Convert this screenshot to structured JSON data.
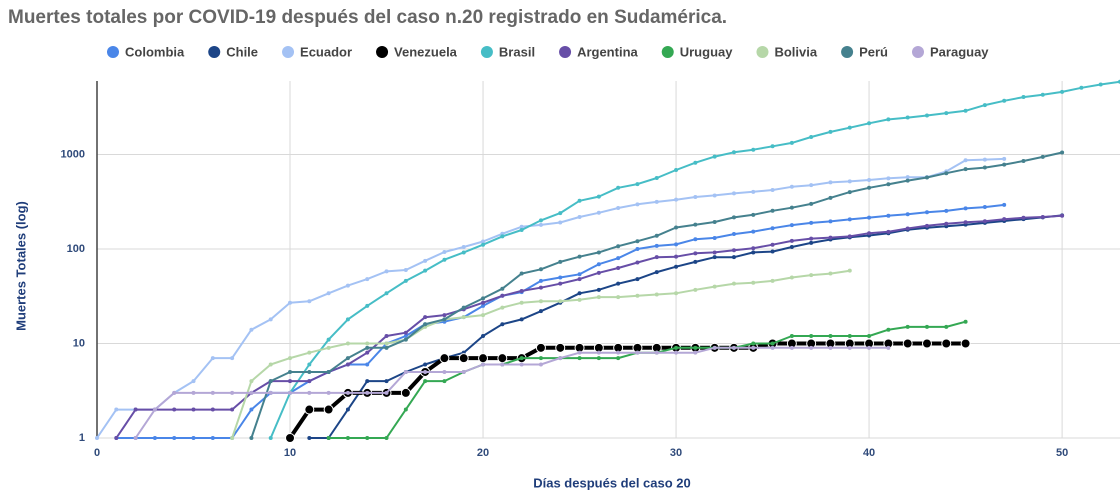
{
  "chart_data": {
    "type": "line",
    "title": "Muertes totales por COVID-19 después del caso n.20 registrado en Sudamérica.",
    "x_label": "Días después del caso 20",
    "y_label": "Muertes Totales (log)",
    "log_y": true,
    "grid": true,
    "legend": "top",
    "xlim": [
      0,
      53
    ],
    "xticks": [
      0,
      10,
      20,
      30,
      40,
      50
    ],
    "ylim": [
      1,
      6000
    ],
    "yticks": [
      1,
      10,
      100,
      1000
    ],
    "x": [
      0,
      1,
      2,
      3,
      4,
      5,
      6,
      7,
      8,
      9,
      10,
      11,
      12,
      13,
      14,
      15,
      16,
      17,
      18,
      19,
      20,
      21,
      22,
      23,
      24,
      25,
      26,
      27,
      28,
      29,
      30,
      31,
      32,
      33,
      34,
      35,
      36,
      37,
      38,
      39,
      40,
      41,
      42,
      43,
      44,
      45,
      46,
      47,
      48,
      49,
      50,
      51,
      52,
      53
    ],
    "series": [
      {
        "name": "Colombia",
        "color": "#4a86e8",
        "values": [
          null,
          1,
          1,
          1,
          1,
          1,
          1,
          1,
          2,
          3,
          3,
          4,
          5,
          6,
          6,
          10,
          12,
          16,
          17,
          19,
          25,
          32,
          35,
          46,
          50,
          54,
          69,
          80,
          100,
          108,
          112,
          127,
          131,
          144,
          153,
          166,
          179,
          189,
          196,
          206,
          215,
          225,
          233,
          245,
          253,
          269,
          278,
          293,
          null,
          null,
          null,
          null,
          null,
          null
        ]
      },
      {
        "name": "Chile",
        "color": "#1c4587",
        "values": [
          null,
          null,
          null,
          null,
          null,
          null,
          null,
          null,
          null,
          null,
          null,
          1,
          1,
          2,
          4,
          4,
          5,
          6,
          7,
          8,
          12,
          16,
          18,
          22,
          27,
          34,
          37,
          43,
          48,
          57,
          65,
          73,
          82,
          82,
          92,
          94,
          105,
          116,
          126,
          133,
          139,
          147,
          160,
          168,
          174,
          181,
          189,
          198,
          207,
          216,
          227,
          null,
          null,
          null
        ]
      },
      {
        "name": "Ecuador",
        "color": "#a4c2f4",
        "values": [
          1,
          2,
          2,
          2,
          3,
          4,
          7,
          7,
          14,
          18,
          27,
          28,
          34,
          41,
          48,
          58,
          60,
          75,
          93,
          105,
          120,
          145,
          172,
          180,
          191,
          218,
          242,
          272,
          297,
          315,
          333,
          355,
          369,
          388,
          403,
          421,
          456,
          474,
          507,
          520,
          537,
          560,
          576,
          576,
          663,
          871,
          883,
          900,
          null,
          null,
          null,
          null,
          null,
          null
        ]
      },
      {
        "name": "Venezuela",
        "color": "#000000",
        "values": [
          null,
          null,
          null,
          null,
          null,
          null,
          null,
          null,
          null,
          null,
          1,
          2,
          2,
          3,
          3,
          3,
          3,
          5,
          7,
          7,
          7,
          7,
          7,
          9,
          9,
          9,
          9,
          9,
          9,
          9,
          9,
          9,
          9,
          9,
          9,
          10,
          10,
          10,
          10,
          10,
          10,
          10,
          10,
          10,
          10,
          10,
          null,
          null,
          null,
          null,
          null,
          null,
          null,
          null
        ]
      },
      {
        "name": "Brasil",
        "color": "#46bdc6",
        "values": [
          null,
          null,
          null,
          null,
          null,
          null,
          null,
          null,
          null,
          1,
          3,
          6,
          11,
          18,
          25,
          34,
          46,
          59,
          77,
          92,
          111,
          136,
          159,
          201,
          240,
          324,
          359,
          445,
          486,
          564,
          686,
          819,
          950,
          1057,
          1124,
          1223,
          1328,
          1532,
          1736,
          1924,
          2141,
          2354,
          2462,
          2587,
          2741,
          2906,
          3331,
          3704,
          4057,
          4286,
          4603,
          5083,
          5513,
          5900
        ]
      },
      {
        "name": "Argentina",
        "color": "#674ea7",
        "values": [
          null,
          1,
          2,
          2,
          2,
          2,
          2,
          2,
          3,
          4,
          4,
          4,
          5,
          6,
          8,
          12,
          13,
          19,
          20,
          23,
          27,
          32,
          36,
          39,
          43,
          48,
          56,
          63,
          72,
          82,
          83,
          90,
          92,
          97,
          102,
          111,
          122,
          129,
          132,
          136,
          147,
          152,
          165,
          176,
          185,
          192,
          197,
          207,
          214,
          218,
          225,
          null,
          null,
          null
        ]
      },
      {
        "name": "Uruguay",
        "color": "#34a853",
        "values": [
          null,
          null,
          null,
          null,
          null,
          null,
          null,
          null,
          null,
          null,
          null,
          null,
          1,
          1,
          1,
          1,
          2,
          4,
          4,
          5,
          6,
          6,
          7,
          7,
          7,
          7,
          7,
          7,
          8,
          8,
          9,
          9,
          9,
          9,
          10,
          10,
          12,
          12,
          12,
          12,
          12,
          14,
          15,
          15,
          15,
          17,
          null,
          null,
          null,
          null,
          null,
          null,
          null,
          null
        ]
      },
      {
        "name": "Bolivia",
        "color": "#b6d7a8",
        "values": [
          null,
          null,
          null,
          null,
          null,
          null,
          null,
          1,
          4,
          6,
          7,
          8,
          9,
          10,
          10,
          10,
          11,
          15,
          18,
          19,
          20,
          24,
          27,
          28,
          28,
          29,
          31,
          31,
          32,
          33,
          34,
          37,
          40,
          43,
          44,
          46,
          50,
          53,
          55,
          59,
          null,
          null,
          null,
          null,
          null,
          null,
          null,
          null,
          null,
          null,
          null,
          null,
          null,
          null
        ]
      },
      {
        "name": "Perú",
        "color": "#45818e",
        "values": [
          null,
          null,
          null,
          null,
          null,
          null,
          null,
          null,
          1,
          4,
          5,
          5,
          5,
          7,
          9,
          9,
          11,
          16,
          18,
          24,
          30,
          38,
          55,
          61,
          73,
          83,
          92,
          107,
          121,
          138,
          169,
          181,
          193,
          216,
          230,
          254,
          274,
          300,
          348,
          400,
          445,
          484,
          530,
          572,
          634,
          700,
          728,
          782,
          854,
          943,
          1051,
          null,
          null,
          null
        ]
      },
      {
        "name": "Paraguay",
        "color": "#b4a7d6",
        "values": [
          null,
          null,
          1,
          2,
          3,
          3,
          3,
          3,
          3,
          3,
          3,
          3,
          3,
          3,
          3,
          3,
          5,
          5,
          5,
          5,
          6,
          6,
          6,
          6,
          7,
          8,
          8,
          8,
          8,
          8,
          8,
          8,
          9,
          9,
          9,
          9,
          9,
          9,
          9,
          9,
          9,
          9,
          null,
          null,
          null,
          null,
          null,
          null,
          null,
          null,
          null,
          null,
          null,
          null
        ]
      }
    ]
  }
}
